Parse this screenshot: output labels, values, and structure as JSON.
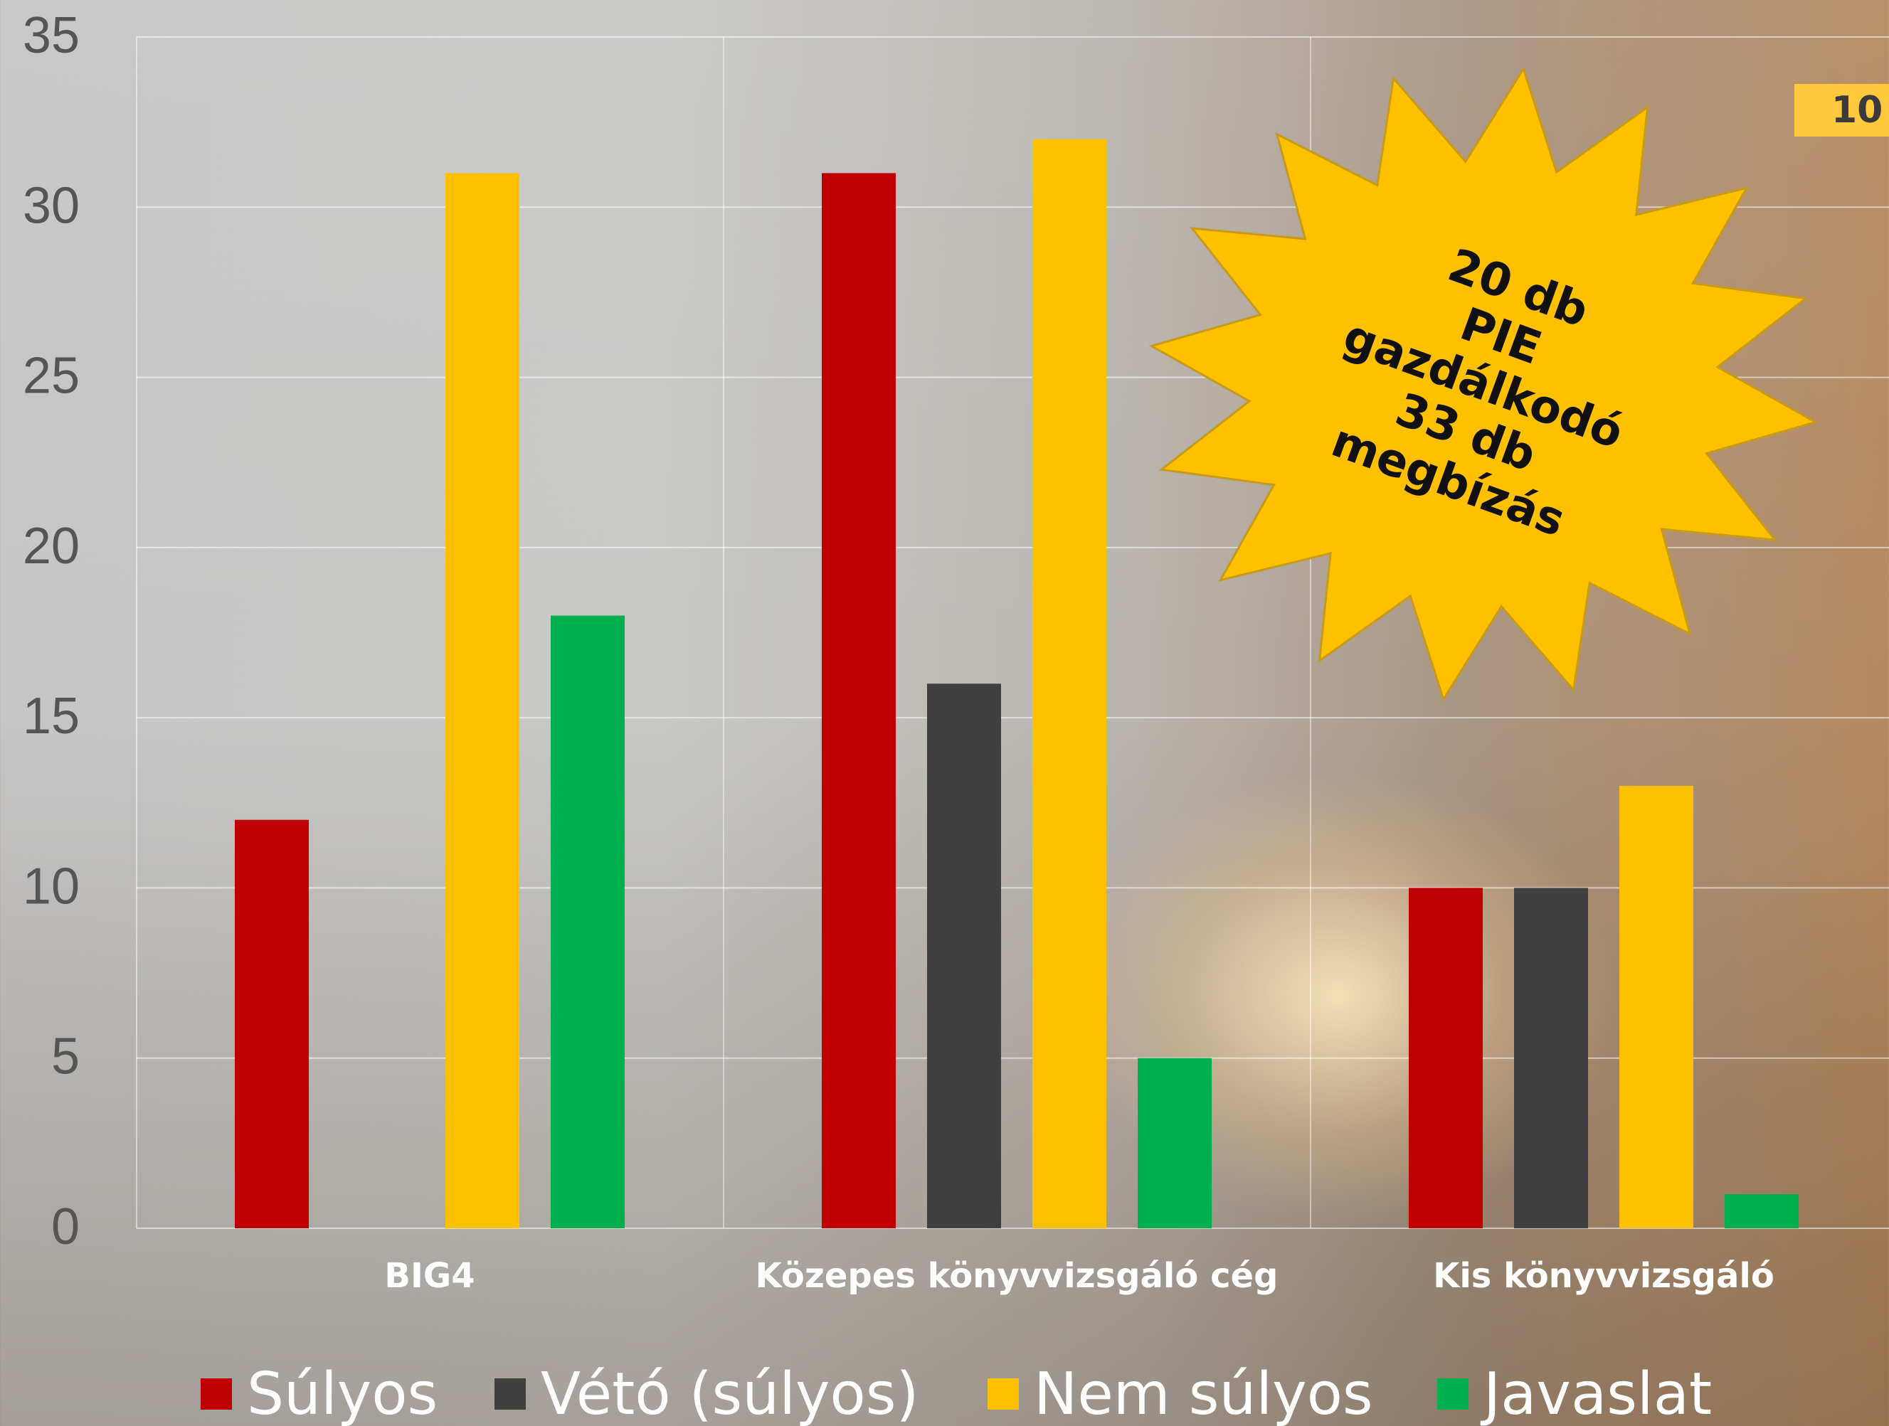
{
  "page_number": "10",
  "annotation": {
    "lines": [
      "20 db",
      "PIE",
      "gazdálkodó",
      "33 db",
      "megbízás"
    ]
  },
  "chart_data": {
    "type": "bar",
    "title": "",
    "xlabel": "",
    "ylabel": "",
    "ylim": [
      0,
      35
    ],
    "yticks": [
      0,
      5,
      10,
      15,
      20,
      25,
      30,
      35
    ],
    "grid": true,
    "legend_position": "bottom",
    "categories": [
      "BIG4",
      "Közepes könyvvizsgáló cég",
      "Kis könyvvizsgáló"
    ],
    "series": [
      {
        "name": "Súlyos",
        "color": "#c00000",
        "values": [
          12,
          31,
          10
        ]
      },
      {
        "name": "Vétó (súlyos)",
        "color": "#404040",
        "values": [
          0,
          16,
          10
        ]
      },
      {
        "name": "Nem súlyos",
        "color": "#ffc000",
        "values": [
          31,
          32,
          13
        ]
      },
      {
        "name": "Javaslat",
        "color": "#00b050",
        "values": [
          18,
          5,
          1
        ]
      }
    ]
  }
}
